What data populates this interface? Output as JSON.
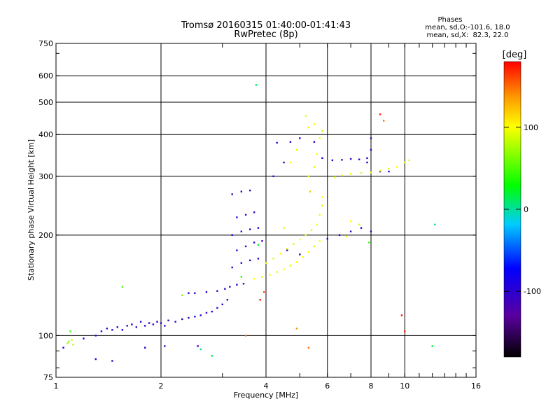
{
  "chart_data": {
    "type": "scatter",
    "title": "Tromsø 20160315 01:40:00-01:41:43",
    "subtitle": "RwPretec (8p)",
    "xlabel": "Frequency [MHz]",
    "ylabel": "Stationary phase Virtual Height [km]",
    "x_scale": "log2",
    "y_scale": "log",
    "xlim": [
      1,
      16
    ],
    "ylim": [
      75,
      750
    ],
    "x_ticks": [
      1,
      2,
      4,
      6,
      8,
      10,
      16
    ],
    "y_ticks": [
      75,
      100,
      200,
      300,
      400,
      500,
      600,
      750
    ],
    "grid": true,
    "phase_stats": {
      "title": "Phases",
      "line1": "mean, sd,O:-101.6, 18.0",
      "line2": "mean, sd,X:  82.3, 22.0"
    },
    "colorbar": {
      "label": "[deg]",
      "range": [
        -180,
        180
      ],
      "ticks": [
        100,
        0,
        -100
      ]
    },
    "series": [
      {
        "name": "",
        "points": [
          [
            1.05,
            92,
            -80
          ],
          [
            1.08,
            95,
            70
          ],
          [
            1.12,
            94,
            80
          ],
          [
            1.2,
            98,
            -100
          ],
          [
            1.3,
            100,
            -105
          ],
          [
            1.35,
            103,
            -110
          ],
          [
            1.4,
            105,
            -100
          ],
          [
            1.45,
            104,
            -110
          ],
          [
            1.5,
            106,
            -105
          ],
          [
            1.55,
            104,
            -100
          ],
          [
            1.6,
            107,
            -110
          ],
          [
            1.65,
            108,
            -95
          ],
          [
            1.7,
            106,
            -110
          ],
          [
            1.75,
            110,
            -100
          ],
          [
            1.8,
            107,
            -110
          ],
          [
            1.85,
            109,
            -100
          ],
          [
            1.9,
            108,
            -110
          ],
          [
            1.95,
            110,
            -100
          ],
          [
            2.0,
            109,
            -105
          ],
          [
            2.05,
            107,
            -100
          ],
          [
            2.1,
            111,
            -110
          ],
          [
            2.2,
            110,
            -105
          ],
          [
            2.3,
            112,
            -100
          ],
          [
            2.4,
            113,
            -110
          ],
          [
            2.5,
            114,
            -95
          ],
          [
            2.6,
            115,
            -100
          ],
          [
            2.7,
            117,
            -110
          ],
          [
            2.8,
            118,
            -100
          ],
          [
            2.9,
            121,
            -110
          ],
          [
            3.0,
            124,
            -100
          ],
          [
            3.1,
            128,
            -105
          ],
          [
            2.4,
            134,
            -100
          ],
          [
            2.5,
            134,
            -110
          ],
          [
            2.7,
            135,
            -100
          ],
          [
            2.9,
            136,
            -110
          ],
          [
            3.05,
            138,
            -100
          ],
          [
            3.15,
            140,
            -110
          ],
          [
            3.3,
            142,
            -100
          ],
          [
            3.45,
            143,
            -110
          ],
          [
            3.2,
            160,
            -110
          ],
          [
            3.4,
            165,
            -100
          ],
          [
            3.6,
            168,
            -105
          ],
          [
            3.8,
            170,
            -110
          ],
          [
            3.3,
            180,
            -100
          ],
          [
            3.5,
            185,
            -110
          ],
          [
            3.7,
            190,
            -100
          ],
          [
            3.9,
            192,
            -110
          ],
          [
            3.2,
            200,
            -100
          ],
          [
            3.4,
            205,
            -110
          ],
          [
            3.6,
            208,
            -100
          ],
          [
            3.8,
            210,
            -110
          ],
          [
            3.3,
            226,
            -100
          ],
          [
            3.5,
            230,
            -110
          ],
          [
            3.7,
            234,
            -105
          ],
          [
            3.2,
            265,
            -110
          ],
          [
            3.4,
            270,
            -100
          ],
          [
            3.6,
            272,
            -110
          ],
          [
            4.2,
            300,
            -100
          ],
          [
            4.5,
            330,
            -110
          ],
          [
            4.3,
            378,
            -100
          ],
          [
            4.7,
            380,
            -110
          ],
          [
            5.0,
            390,
            -100
          ],
          [
            5.5,
            380,
            -110
          ],
          [
            5.8,
            340,
            -100
          ],
          [
            6.2,
            335,
            -110
          ],
          [
            6.6,
            336,
            -100
          ],
          [
            7.0,
            338,
            -110
          ],
          [
            7.4,
            337,
            -100
          ],
          [
            7.8,
            340,
            -110
          ],
          [
            8.0,
            360,
            -100
          ],
          [
            8.0,
            390,
            -110
          ],
          [
            7.8,
            330,
            -100
          ],
          [
            8.5,
            310,
            -110
          ],
          [
            9.0,
            310,
            -100
          ],
          [
            6.0,
            195,
            -110
          ],
          [
            6.5,
            200,
            -100
          ],
          [
            7.0,
            205,
            -110
          ],
          [
            7.5,
            210,
            -100
          ],
          [
            8.0,
            205,
            -110
          ],
          [
            5.0,
            175,
            -100
          ],
          [
            4.6,
            180,
            -110
          ],
          [
            1.3,
            85,
            -100
          ],
          [
            1.45,
            84,
            -110
          ],
          [
            1.8,
            92,
            -100
          ],
          [
            2.05,
            93,
            -110
          ],
          [
            2.55,
            93,
            -100
          ],
          [
            3.7,
            148,
            100
          ],
          [
            3.9,
            150,
            90
          ],
          [
            4.1,
            152,
            100
          ],
          [
            4.3,
            155,
            95
          ],
          [
            4.5,
            158,
            100
          ],
          [
            4.7,
            162,
            90
          ],
          [
            4.9,
            166,
            100
          ],
          [
            5.1,
            172,
            95
          ],
          [
            5.3,
            178,
            100
          ],
          [
            5.5,
            185,
            90
          ],
          [
            5.7,
            192,
            100
          ],
          [
            4.0,
            165,
            95
          ],
          [
            4.2,
            170,
            90
          ],
          [
            4.4,
            176,
            100
          ],
          [
            4.6,
            182,
            95
          ],
          [
            4.8,
            188,
            90
          ],
          [
            5.0,
            194,
            100
          ],
          [
            5.2,
            200,
            95
          ],
          [
            5.4,
            207,
            90
          ],
          [
            5.6,
            215,
            100
          ],
          [
            5.7,
            230,
            95
          ],
          [
            5.8,
            245,
            90
          ],
          [
            5.8,
            260,
            100
          ],
          [
            5.3,
            300,
            95
          ],
          [
            5.5,
            320,
            90
          ],
          [
            5.6,
            350,
            100
          ],
          [
            5.7,
            390,
            95
          ],
          [
            5.8,
            410,
            90
          ],
          [
            5.5,
            430,
            100
          ],
          [
            5.3,
            420,
            110
          ],
          [
            5.2,
            455,
            95
          ],
          [
            6.3,
            298,
            90
          ],
          [
            6.6,
            302,
            100
          ],
          [
            7.0,
            305,
            95
          ],
          [
            7.5,
            307,
            90
          ],
          [
            8.0,
            308,
            100
          ],
          [
            8.5,
            312,
            95
          ],
          [
            9.0,
            316,
            90
          ],
          [
            9.5,
            320,
            100
          ],
          [
            10.0,
            330,
            95
          ],
          [
            10.3,
            335,
            90
          ],
          [
            7.0,
            220,
            100
          ],
          [
            7.4,
            215,
            90
          ],
          [
            6.8,
            198,
            100
          ],
          [
            4.5,
            210,
            95
          ],
          [
            4.7,
            330,
            100
          ],
          [
            4.9,
            360,
            90
          ],
          [
            1.09,
            96,
            70
          ],
          [
            1.11,
            97,
            85
          ],
          [
            1.1,
            103,
            40
          ],
          [
            1.55,
            140,
            50
          ],
          [
            2.3,
            132,
            60
          ],
          [
            3.4,
            150,
            30
          ],
          [
            3.75,
            563,
            10
          ],
          [
            3.85,
            128,
            170
          ],
          [
            3.95,
            135,
            160
          ],
          [
            5.3,
            92,
            150
          ],
          [
            5.35,
            270,
            120
          ],
          [
            7.9,
            190,
            40
          ],
          [
            8.5,
            460,
            170
          ],
          [
            8.7,
            440,
            150
          ],
          [
            9.8,
            115,
            175
          ],
          [
            10.0,
            103,
            170
          ],
          [
            12.2,
            215,
            0
          ],
          [
            12.0,
            93,
            20
          ],
          [
            3.8,
            187,
            20
          ],
          [
            4.9,
            105,
            140
          ],
          [
            3.5,
            100,
            150
          ],
          [
            2.8,
            87,
            10
          ],
          [
            2.6,
            91,
            0
          ]
        ]
      }
    ]
  }
}
